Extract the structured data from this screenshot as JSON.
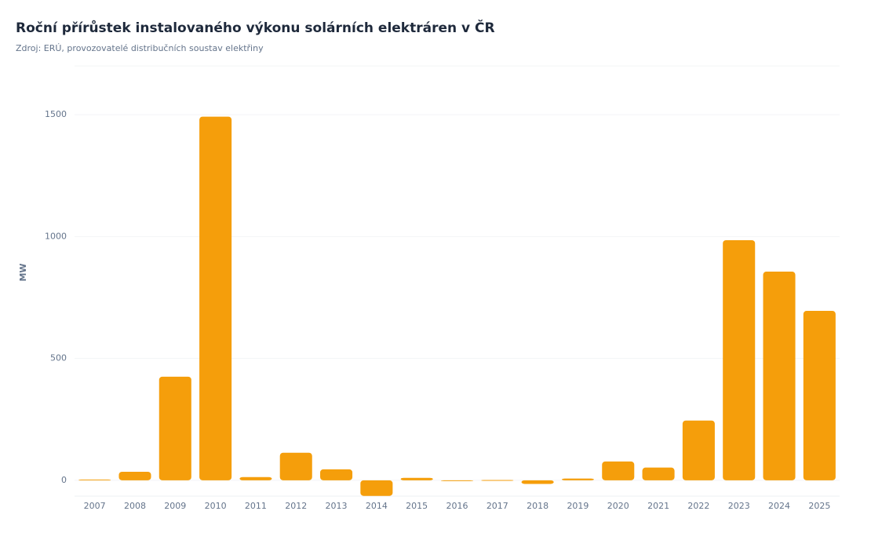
{
  "chart_data": {
    "type": "bar",
    "title": "Roční přírůstek instalovaného výkonu solárních elektráren v ČR",
    "subtitle": "Zdroj: ERÚ, provozovatelé distribučních soustav elektřiny",
    "y_label": "MW",
    "categories": [
      "2007",
      "2008",
      "2009",
      "2010",
      "2011",
      "2012",
      "2013",
      "2014",
      "2015",
      "2016",
      "2017",
      "2018",
      "2019",
      "2020",
      "2021",
      "2022",
      "2023",
      "2024",
      "2025"
    ],
    "values": [
      3,
      35,
      425,
      1492,
      13,
      113,
      45,
      -64,
      10,
      -2,
      1,
      -15,
      7,
      77,
      52,
      245,
      985,
      856,
      695
    ],
    "color": "#f59e0b",
    "ylim": [
      -65,
      1700
    ],
    "yticks": [
      0,
      500,
      1000,
      1500
    ],
    "grid": true
  }
}
